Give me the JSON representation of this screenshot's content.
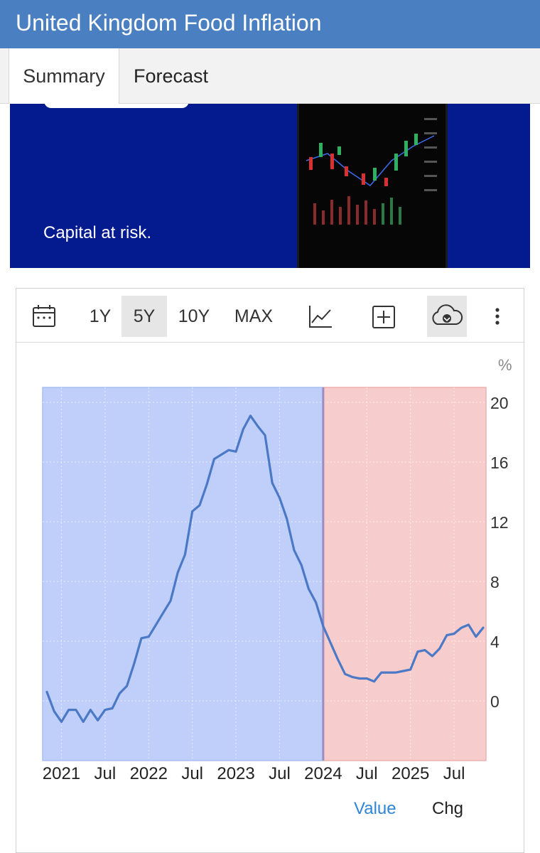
{
  "window": {
    "title": "United Kingdom Food Inflation"
  },
  "tabs": [
    {
      "label": "Summary",
      "active": true
    },
    {
      "label": "Forecast",
      "active": false
    }
  ],
  "ad": {
    "text": "Capital at risk."
  },
  "toolbar": {
    "ranges": [
      "1Y",
      "5Y",
      "10Y",
      "MAX"
    ],
    "selected_range": "5Y",
    "icons": [
      "calendar-icon",
      "line-chart-icon",
      "add-icon",
      "download-cloud-icon",
      "more-vertical-icon"
    ]
  },
  "colors": {
    "header": "#4a7fc1",
    "line": "#4b79c6",
    "actual_bg": "#bfcffa",
    "forecast_bg": "#f7cccc",
    "legend_active": "#2f86d8"
  },
  "chart_data": {
    "type": "line",
    "unit_label": "%",
    "y_ticks": [
      20,
      16,
      12,
      8,
      4,
      0
    ],
    "ylim": [
      -4,
      21
    ],
    "x_tick_labels": [
      "2021",
      "Jul",
      "2022",
      "Jul",
      "2023",
      "Jul",
      "2024",
      "Jul",
      "2025",
      "Jul"
    ],
    "x_tick_dates": [
      "2021-01",
      "2021-07",
      "2022-01",
      "2022-07",
      "2023-01",
      "2023-07",
      "2024-01",
      "2024-07",
      "2025-01",
      "2025-07"
    ],
    "regions": [
      {
        "kind": "actual",
        "from": "2020-11",
        "to": "2024-01"
      },
      {
        "kind": "forecast",
        "from": "2024-01",
        "to": "2025-11"
      }
    ],
    "grid": true,
    "series": [
      {
        "x": [
          "2020-11",
          "2020-12",
          "2021-01",
          "2021-02",
          "2021-03",
          "2021-04",
          "2021-05",
          "2021-06",
          "2021-07",
          "2021-08",
          "2021-09",
          "2021-10",
          "2021-11",
          "2021-12",
          "2022-01",
          "2022-02",
          "2022-03",
          "2022-04",
          "2022-05",
          "2022-06",
          "2022-07",
          "2022-08",
          "2022-09",
          "2022-10",
          "2022-11",
          "2022-12",
          "2023-01",
          "2023-02",
          "2023-03",
          "2023-04",
          "2023-05",
          "2023-06",
          "2023-07",
          "2023-08",
          "2023-09",
          "2023-10",
          "2023-11",
          "2023-12",
          "2024-01",
          "2024-02",
          "2024-03",
          "2024-04",
          "2024-05",
          "2024-06",
          "2024-07",
          "2024-08",
          "2024-09",
          "2024-10",
          "2024-11",
          "2024-12",
          "2025-01",
          "2025-02",
          "2025-03",
          "2025-04",
          "2025-05",
          "2025-06",
          "2025-07",
          "2025-08",
          "2025-09",
          "2025-10",
          "2025-11"
        ],
        "values": [
          0.6,
          -0.7,
          -1.4,
          -0.6,
          -0.6,
          -1.4,
          -0.6,
          -1.3,
          -0.6,
          -0.5,
          0.5,
          1.0,
          2.5,
          4.2,
          4.3,
          5.1,
          5.9,
          6.7,
          8.6,
          9.8,
          12.7,
          13.1,
          14.5,
          16.2,
          16.5,
          16.8,
          16.7,
          18.2,
          19.1,
          18.4,
          17.8,
          14.6,
          13.6,
          12.2,
          10.1,
          9.1,
          7.5,
          6.6,
          5.0,
          3.9,
          2.8,
          1.8,
          1.6,
          1.5,
          1.5,
          1.3,
          1.9,
          1.9,
          1.9,
          2.0,
          2.1,
          3.3,
          3.4,
          3.0,
          3.5,
          4.4,
          4.5,
          4.9,
          5.1,
          4.3,
          4.9
        ]
      }
    ]
  },
  "legend": {
    "items": [
      "Value",
      "Chg"
    ],
    "active": "Value"
  }
}
